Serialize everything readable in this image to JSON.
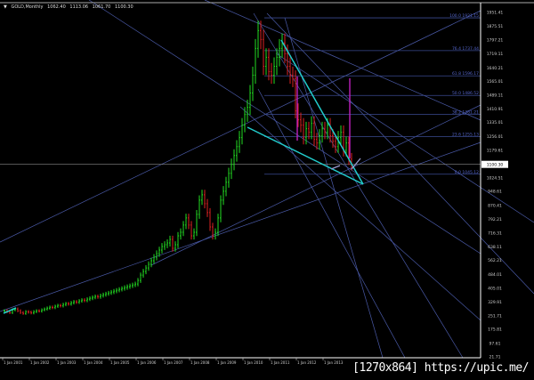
{
  "header": {
    "symbol": "GOLD,Monthly",
    "open": "1062.40",
    "high": "1113.06",
    "low": "1061.70",
    "close": "1100.30",
    "icon": "triangle-down-icon"
  },
  "watermark": "[1270x864] https://upic.me/",
  "colors": {
    "background": "#000000",
    "bull": "#22dd22",
    "bear": "#dd2222",
    "trendline": "#4a5aa8",
    "fibo": "#3a4a90",
    "triangle": "#22cccc",
    "measure": "#cc22cc",
    "axis": "#ffffff"
  },
  "chart_data": {
    "type": "bar",
    "series_type": "ohlc-monthly",
    "ylim": [
      21.71,
      1951.41
    ],
    "current_price": "1100.30",
    "y_ticks": [
      "1951.41",
      "1875.51",
      "1797.21",
      "1719.11",
      "1640.21",
      "1565.01",
      "1489.11",
      "1410.91",
      "1335.01",
      "1256.01",
      "1179.61",
      "1100.30",
      "1024.51",
      "948.61",
      "870.41",
      "792.21",
      "716.31",
      "638.11",
      "562.21",
      "484.01",
      "405.01",
      "329.91",
      "251.71",
      "175.81",
      "97.61",
      "21.71"
    ],
    "x_ticks": [
      "1 Jan 2001",
      "1 Jan 2002",
      "1 Jan 2003",
      "1 Jan 2004",
      "1 Jan 2005",
      "1 Jan 2006",
      "1 Jan 2007",
      "1 Jan 2008",
      "1 Jan 2009",
      "1 Jan 2010",
      "1 Jan 2011",
      "1 Jan 2012",
      "1 Jan 2013"
    ],
    "closes": [
      280,
      275,
      270,
      285,
      290,
      280,
      270,
      265,
      275,
      272,
      268,
      275,
      280,
      278,
      285,
      290,
      295,
      300,
      298,
      305,
      310,
      308,
      315,
      320,
      318,
      325,
      330,
      328,
      335,
      340,
      338,
      345,
      350,
      355,
      360,
      358,
      365,
      370,
      375,
      380,
      385,
      390,
      395,
      400,
      405,
      410,
      415,
      420,
      425,
      430,
      450,
      480,
      500,
      520,
      540,
      560,
      580,
      600,
      620,
      640,
      650,
      660,
      680,
      630,
      650,
      700,
      720,
      760,
      800,
      760,
      700,
      720,
      820,
      900,
      930,
      880,
      830,
      750,
      700,
      720,
      800,
      900,
      950,
      1000,
      1050,
      1100,
      1150,
      1200,
      1250,
      1320,
      1380,
      1420,
      1500,
      1600,
      1750,
      1850,
      1800,
      1650,
      1700,
      1620,
      1600,
      1650,
      1700,
      1750,
      1780,
      1720,
      1650,
      1600,
      1580,
      1400,
      1350,
      1320,
      1250,
      1300,
      1280,
      1330,
      1240,
      1220,
      1260,
      1300,
      1280,
      1320,
      1260,
      1230,
      1200,
      1250,
      1280,
      1180,
      1220,
      1130,
      1100
    ],
    "fibonacci": [
      {
        "label": "100.0 1921.15",
        "price": 1921.15
      },
      {
        "label": "76.4 1737.44",
        "price": 1737.44
      },
      {
        "label": "61.8 1596.17",
        "price": 1596.17
      },
      {
        "label": "50.0 1486.52",
        "price": 1486.52
      },
      {
        "label": "38.2 1381.21",
        "price": 1381.21
      },
      {
        "label": "23.6 1255.13",
        "price": 1255.13
      },
      {
        "label": "0.0 1045.12",
        "price": 1045.12
      }
    ]
  }
}
